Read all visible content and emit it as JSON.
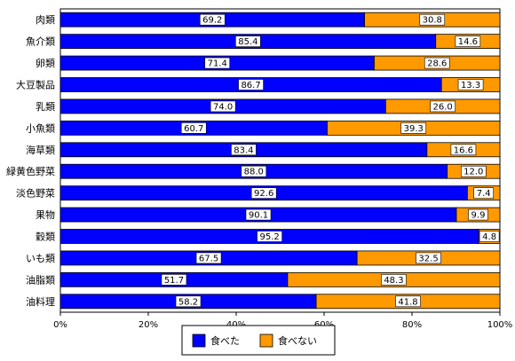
{
  "chart_data": {
    "type": "bar",
    "orientation": "horizontal",
    "stacked": true,
    "percent": true,
    "categories": [
      "肉類",
      "魚介類",
      "卵類",
      "大豆製品",
      "乳類",
      "小魚類",
      "海草類",
      "緑黄色野菜",
      "淡色野菜",
      "果物",
      "穀類",
      "いも類",
      "油脂類",
      "油料理"
    ],
    "series": [
      {
        "name": "食べた",
        "color": "#0000FF",
        "values": [
          69.2,
          85.4,
          71.4,
          86.7,
          74.0,
          60.7,
          83.4,
          88.0,
          92.6,
          90.1,
          95.2,
          67.5,
          51.7,
          58.2
        ],
        "labels": [
          "69.2",
          "85.4",
          "71.4",
          "86.7",
          "74.0",
          "60.7",
          "83.4",
          "88.0",
          "92.6",
          "90.1",
          "95.2",
          "67.5",
          "51.7",
          "58.2"
        ]
      },
      {
        "name": "食べない",
        "color": "#FF9900",
        "values": [
          30.8,
          14.6,
          28.6,
          13.3,
          26.0,
          39.3,
          16.6,
          12.0,
          7.4,
          9.9,
          4.8,
          32.5,
          48.3,
          41.8
        ],
        "labels": [
          "30.8",
          "14.6",
          "28.6",
          "13.3",
          "26.0",
          "39.3",
          "16.6",
          "12.0",
          "7.4",
          "9.9",
          "4.8",
          "32.5",
          "48.3",
          "41.8"
        ]
      }
    ],
    "xlim": [
      0,
      100
    ],
    "x_ticks": [
      "0%",
      "20%",
      "40%",
      "60%",
      "80%",
      "100%"
    ],
    "legend_position": "bottom",
    "grid": false
  }
}
